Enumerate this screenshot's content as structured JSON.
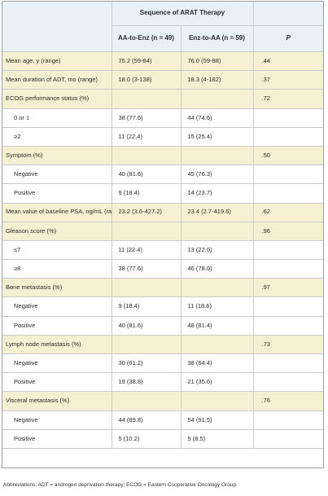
{
  "header": {
    "group_title": "Sequence of ARAT Therapy",
    "col_aa": "AA-to-Enz (n = 49)",
    "col_enz": "Enz-to-AA (n = 59)",
    "col_p": "P"
  },
  "rows": [
    {
      "label": "Mean age, y (range)",
      "aa": "75.2 (59-84)",
      "enz": "76.0 (59-88)",
      "p": ".44",
      "kind": "cat"
    },
    {
      "label": "Mean duration of ADT, mo (range)",
      "aa": "18.0 (3-138)",
      "enz": "18.3 (4-182)",
      "p": ".37",
      "kind": "cat"
    },
    {
      "label": "ECOG performance status (%)",
      "aa": "",
      "enz": "",
      "p": ".72",
      "kind": "cat"
    },
    {
      "label": "0 or 1",
      "aa": "38 (77.6)",
      "enz": "44 (74.6)",
      "p": "",
      "kind": "sub"
    },
    {
      "label": "≥2",
      "aa": "11 (22.4)",
      "enz": "15 (25.4)",
      "p": "",
      "kind": "sub"
    },
    {
      "label": "Symptom (%)",
      "aa": "",
      "enz": "",
      "p": ".50",
      "kind": "cat"
    },
    {
      "label": "Negative",
      "aa": "40 (81.6)",
      "enz": "45 (76.3)",
      "p": "",
      "kind": "sub"
    },
    {
      "label": "Positive",
      "aa": "9 (18.4)",
      "enz": "14 (23.7)",
      "p": "",
      "kind": "sub"
    },
    {
      "label": "Mean value of baseline PSA, ng/mL (range)",
      "aa": "23.2 (3.6-427.2)",
      "enz": "23.4 (2.7-419.6)",
      "p": ".62",
      "kind": "cat"
    },
    {
      "label": "Gleason score (%)",
      "aa": "",
      "enz": "",
      "p": ".96",
      "kind": "cat"
    },
    {
      "label": "≤7",
      "aa": "11 (22.4)",
      "enz": "13 (22.0)",
      "p": "",
      "kind": "sub"
    },
    {
      "label": "≥8",
      "aa": "38 (77.6)",
      "enz": "46 (78.0)",
      "p": "",
      "kind": "sub"
    },
    {
      "label": "Bone metastasis (%)",
      "aa": "",
      "enz": "",
      "p": ".97",
      "kind": "cat"
    },
    {
      "label": "Negative",
      "aa": "9 (18.4)",
      "enz": "11 (18.6)",
      "p": "",
      "kind": "sub"
    },
    {
      "label": "Positive",
      "aa": "40 (81.6)",
      "enz": "48 (81.4)",
      "p": "",
      "kind": "sub"
    },
    {
      "label": "Lymph node metastasis (%)",
      "aa": "",
      "enz": "",
      "p": ".73",
      "kind": "cat"
    },
    {
      "label": "Negative",
      "aa": "30 (61.2)",
      "enz": "38 (64.4)",
      "p": "",
      "kind": "sub"
    },
    {
      "label": "Positive",
      "aa": "19 (38.8)",
      "enz": "21 (35.6)",
      "p": "",
      "kind": "sub"
    },
    {
      "label": "Visceral metastasis (%)",
      "aa": "",
      "enz": "",
      "p": ".76",
      "kind": "cat"
    },
    {
      "label": "Negative",
      "aa": "44 (89.8)",
      "enz": "54 (91.5)",
      "p": "",
      "kind": "sub"
    },
    {
      "label": "Positive",
      "aa": "5 (10.2)",
      "enz": "5 (8.5)",
      "p": "",
      "kind": "sub"
    }
  ],
  "footnote": "Abbreviations: ADT = androgen deprivation therapy; ECOG = Eastern Cooperative Oncology Group."
}
